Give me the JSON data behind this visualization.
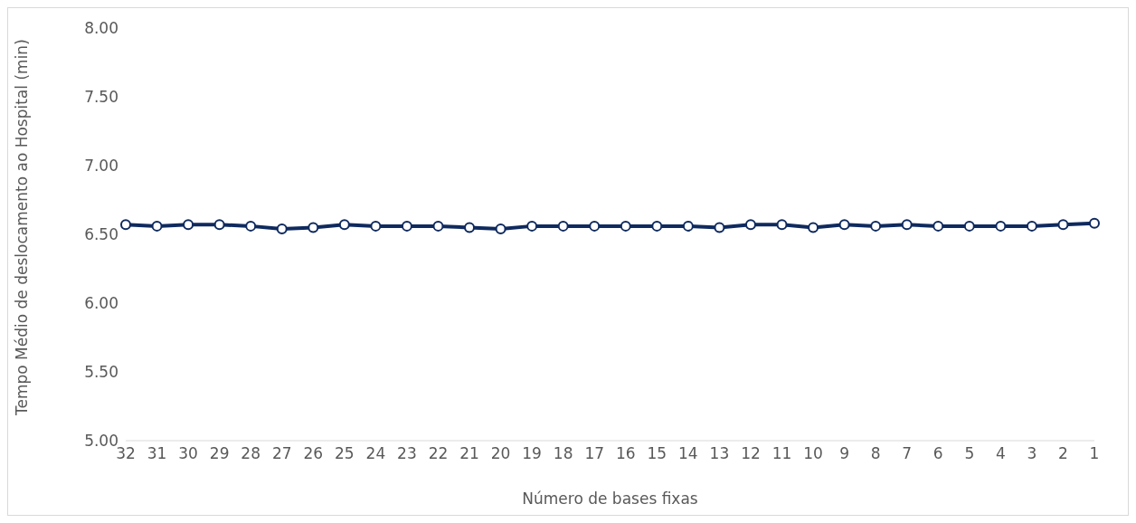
{
  "chart_data": {
    "type": "line",
    "xlabel": "Número de bases fixas",
    "ylabel": "Tempo Médio de deslocamento ao Hospital  (min)",
    "categories": [
      "32",
      "31",
      "30",
      "29",
      "28",
      "27",
      "26",
      "25",
      "24",
      "23",
      "22",
      "21",
      "20",
      "19",
      "18",
      "17",
      "16",
      "15",
      "14",
      "13",
      "12",
      "11",
      "10",
      "9",
      "8",
      "7",
      "6",
      "5",
      "4",
      "3",
      "2",
      "1"
    ],
    "series": [
      {
        "color": "#0f2a5e",
        "values": [
          6.57,
          6.56,
          6.57,
          6.57,
          6.56,
          6.54,
          6.55,
          6.57,
          6.56,
          6.56,
          6.56,
          6.55,
          6.54,
          6.56,
          6.56,
          6.56,
          6.56,
          6.56,
          6.56,
          6.55,
          6.57,
          6.57,
          6.55,
          6.57,
          6.56,
          6.57,
          6.56,
          6.56,
          6.56,
          6.56,
          6.57,
          6.58
        ]
      }
    ],
    "ylim": [
      5,
      8
    ],
    "yticks": [
      {
        "value": 5,
        "label": "5.00"
      },
      {
        "value": 5.5,
        "label": "5.50"
      },
      {
        "value": 6,
        "label": "6.00"
      },
      {
        "value": 6.5,
        "label": "6.50"
      },
      {
        "value": 7,
        "label": "7.00"
      },
      {
        "value": 7.5,
        "label": "7.50"
      },
      {
        "value": 8,
        "label": "8.00"
      }
    ],
    "grid": false,
    "legend": false,
    "marker": "circle",
    "line_style": "solid"
  }
}
